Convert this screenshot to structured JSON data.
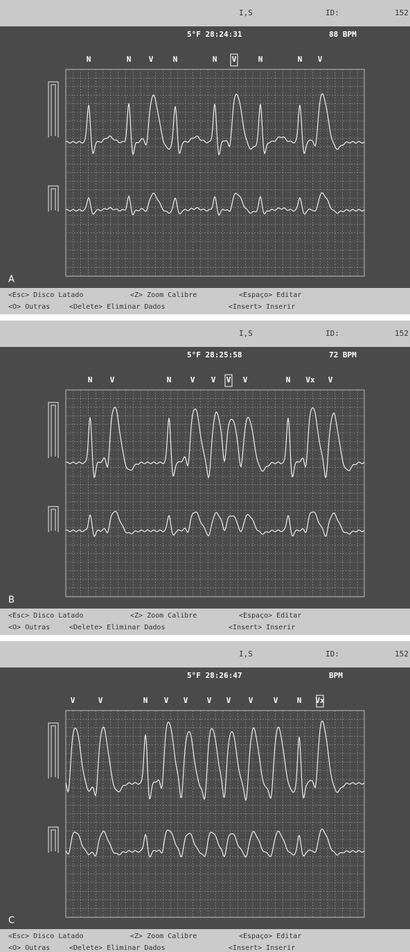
{
  "panels": [
    {
      "label": "A",
      "header": {
        "patient": "I,S",
        "id_label": "ID:",
        "id_value": "152"
      },
      "time": "5°F 28:24:31",
      "bpm": "88 BPM",
      "beats": [
        "N",
        "N",
        "V",
        "N",
        "N",
        "V",
        "N",
        "N",
        "V"
      ],
      "footer": {
        "line1": [
          "<Esc> Disco Latado",
          "<Z> Zoom Calibre",
          "<Espaço> Editar"
        ],
        "line2": [
          "<O> Outras",
          "<Delete> Eliminar Dados",
          "<Insert> Inserir"
        ]
      }
    },
    {
      "label": "B",
      "header": {
        "patient": "I,S",
        "id_label": "ID:",
        "id_value": "152"
      },
      "time": "5°F 28:25:58",
      "bpm": "72 BPM",
      "beats": [
        "N",
        "V",
        "N",
        "V",
        "V",
        "V",
        "V",
        "N",
        "Vx",
        "V"
      ],
      "footer": {
        "line1": [
          "<Esc> Disco Latado",
          "<Z> Zoom Calibre",
          "<Espaço> Editar"
        ],
        "line2": [
          "<O> Outras",
          "<Delete> Eliminar Dados",
          "<Insert> Inserir"
        ]
      }
    },
    {
      "label": "C",
      "header": {
        "patient": "I,S",
        "id_label": "ID:",
        "id_value": "152"
      },
      "time": "5°F 28:26:47",
      "bpm": "BPM",
      "beats": [
        "V",
        "V",
        "N",
        "V",
        "V",
        "V",
        "V",
        "V",
        "V",
        "N",
        "Vx"
      ],
      "footer": {
        "line1": [
          "<Esc> Disco Latado",
          "<Z> Zoom Calibre",
          "<Espaço> Editar"
        ],
        "line2": [
          "<O> Outras",
          "<Delete> Eliminar Dados",
          "<Insert> Inserir"
        ]
      }
    }
  ]
}
